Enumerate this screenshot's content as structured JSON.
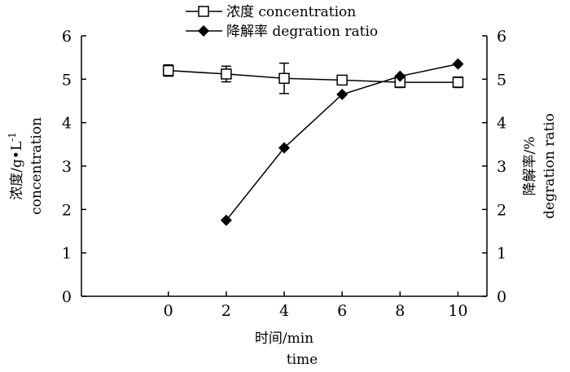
{
  "chart_data": {
    "type": "line",
    "x": [
      0,
      2,
      4,
      6,
      8,
      10
    ],
    "xlabel": "时间/min",
    "xlabel_en": "time",
    "ylabel": "浓度/g•L",
    "ylabel_sup": "-1",
    "ylabel_en": "concentration",
    "y2label": "降解率/%",
    "y2label_en": "degration ratio",
    "xlim": [
      -3,
      11
    ],
    "ylim": [
      0,
      6
    ],
    "y2lim": [
      0,
      6
    ],
    "xticks": [
      "0",
      "2",
      "4",
      "6",
      "8",
      "10"
    ],
    "yticks": [
      "0",
      "1",
      "2",
      "3",
      "4",
      "5",
      "6"
    ],
    "y2ticks": [
      "0",
      "1",
      "2",
      "3",
      "4",
      "5",
      "6"
    ],
    "grid": false,
    "legend": "top-center",
    "series": [
      {
        "name": "浓度 concentration",
        "marker": "square-open",
        "axis": "left",
        "x": [
          0,
          2,
          4,
          6,
          8,
          10
        ],
        "values": [
          5.2,
          5.12,
          5.02,
          4.98,
          4.93,
          4.93
        ],
        "errors": [
          0.13,
          0.18,
          0.35,
          0.05,
          0.12,
          0.12
        ]
      },
      {
        "name": "降解率 degration ratio",
        "marker": "diamond-filled",
        "axis": "right",
        "x": [
          2,
          4,
          6,
          8,
          10
        ],
        "values": [
          1.75,
          3.42,
          4.65,
          5.07,
          5.35
        ]
      }
    ]
  }
}
